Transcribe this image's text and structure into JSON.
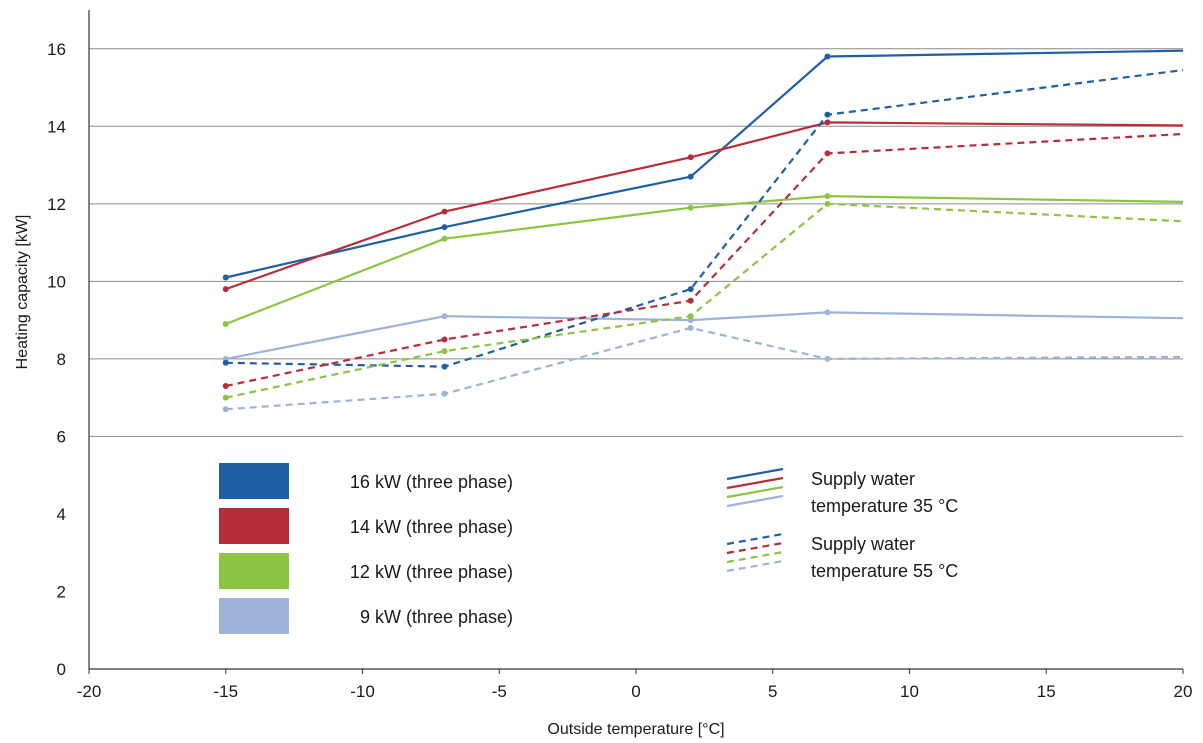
{
  "chart_data": {
    "type": "line",
    "xlabel": "Outside temperature [°C]",
    "ylabel": "Heating capacity [kW]",
    "xlim": [
      -20,
      20
    ],
    "ylim": [
      0,
      17
    ],
    "xticks": [
      -20,
      -15,
      -10,
      -5,
      0,
      5,
      10,
      15,
      20
    ],
    "yticks": [
      0,
      2,
      4,
      6,
      8,
      10,
      12,
      14,
      16
    ],
    "gridlines_y": [
      6,
      8,
      10,
      12,
      14,
      16
    ],
    "colors": {
      "kw16": "#1f5fa6",
      "kw14": "#b82d3a",
      "kw12": "#8cc443",
      "kw9": "#9fb2d8",
      "grid": "#8a8a8a",
      "axis": "#333333"
    },
    "series": [
      {
        "model": "kw16",
        "supply": "35",
        "dash": false,
        "points": [
          [
            -15,
            10.1
          ],
          [
            -7,
            11.4
          ],
          [
            2,
            12.7
          ],
          [
            7,
            15.8
          ],
          [
            20,
            15.95
          ]
        ]
      },
      {
        "model": "kw14",
        "supply": "35",
        "dash": false,
        "points": [
          [
            -15,
            9.8
          ],
          [
            -7,
            11.8
          ],
          [
            2,
            13.2
          ],
          [
            7,
            14.1
          ],
          [
            20,
            14.02
          ]
        ]
      },
      {
        "model": "kw12",
        "supply": "35",
        "dash": false,
        "points": [
          [
            -15,
            8.9
          ],
          [
            -7,
            11.1
          ],
          [
            2,
            11.9
          ],
          [
            7,
            12.2
          ],
          [
            20,
            12.05
          ]
        ]
      },
      {
        "model": "kw9",
        "supply": "35",
        "dash": false,
        "points": [
          [
            -15,
            8.0
          ],
          [
            -7,
            9.1
          ],
          [
            2,
            9.0
          ],
          [
            7,
            9.2
          ],
          [
            20,
            9.05
          ]
        ]
      },
      {
        "model": "kw16",
        "supply": "55",
        "dash": true,
        "points": [
          [
            -15,
            7.9
          ],
          [
            -7,
            7.8
          ],
          [
            2,
            9.8
          ],
          [
            7,
            14.3
          ],
          [
            20,
            15.45
          ]
        ]
      },
      {
        "model": "kw14",
        "supply": "55",
        "dash": true,
        "points": [
          [
            -15,
            7.3
          ],
          [
            -7,
            8.5
          ],
          [
            2,
            9.5
          ],
          [
            7,
            13.3
          ],
          [
            20,
            13.8
          ]
        ]
      },
      {
        "model": "kw12",
        "supply": "55",
        "dash": true,
        "points": [
          [
            -15,
            7.0
          ],
          [
            -7,
            8.2
          ],
          [
            2,
            9.1
          ],
          [
            7,
            12.0
          ],
          [
            20,
            11.55
          ]
        ]
      },
      {
        "model": "kw9",
        "supply": "55",
        "dash": true,
        "points": [
          [
            -15,
            6.7
          ],
          [
            -7,
            7.1
          ],
          [
            2,
            8.8
          ],
          [
            7,
            8.0
          ],
          [
            20,
            8.05
          ]
        ]
      }
    ],
    "legend_models": [
      {
        "model": "kw16",
        "label": "16 kW (three phase)"
      },
      {
        "model": "kw14",
        "label": "14 kW (three phase)"
      },
      {
        "model": "kw12",
        "label": "12 kW (three phase)"
      },
      {
        "model": "kw9",
        "label": "9 kW (three phase)"
      }
    ],
    "legend_styles": [
      {
        "dash": false,
        "line1": "Supply water",
        "line2": "temperature 35 °C"
      },
      {
        "dash": true,
        "line1": "Supply water",
        "line2": "temperature 55 °C"
      }
    ]
  }
}
